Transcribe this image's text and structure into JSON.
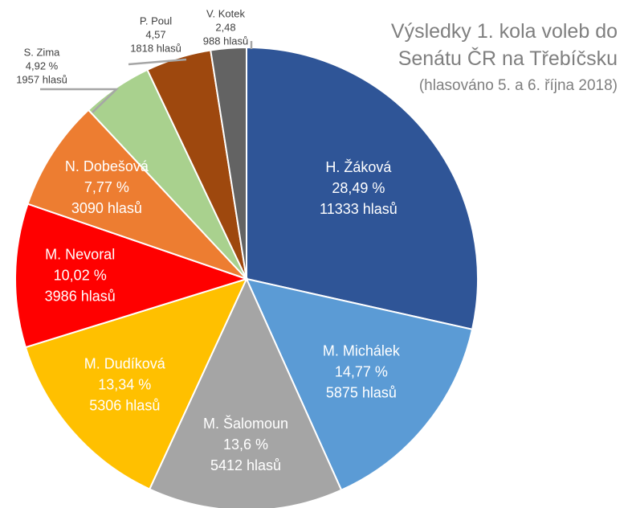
{
  "chart_data": {
    "type": "pie",
    "title_lines": [
      "Výsledky 1. kola voleb do",
      "Senátu ČR na Třebíčsku"
    ],
    "subtitle": "(hlasováno 5. a 6. října 2018)",
    "slices": [
      {
        "name": "H. Žáková",
        "percent_label": "28,49 %",
        "votes_label": "11333 hlasů",
        "votes": 11333,
        "color": "#2f5597",
        "text_color": "#ffffff"
      },
      {
        "name": "M. Michálek",
        "percent_label": "14,77 %",
        "votes_label": "5875 hlasů",
        "votes": 5875,
        "color": "#5b9bd5",
        "text_color": "#ffffff"
      },
      {
        "name": "M. Šalomoun",
        "percent_label": "13,6 %",
        "votes_label": "5412 hlasů",
        "votes": 5412,
        "color": "#a5a5a5",
        "text_color": "#ffffff"
      },
      {
        "name": "M. Dudíková",
        "percent_label": "13,34 %",
        "votes_label": "5306 hlasů",
        "votes": 5306,
        "color": "#ffc000",
        "text_color": "#ffffff"
      },
      {
        "name": "M. Nevoral",
        "percent_label": "10,02 %",
        "votes_label": "3986 hlasů",
        "votes": 3986,
        "color": "#ff0000",
        "text_color": "#ffffff"
      },
      {
        "name": "N. Dobešová",
        "percent_label": "7,77 %",
        "votes_label": "3090 hlasů",
        "votes": 3090,
        "color": "#ed7d31",
        "text_color": "#ffffff"
      },
      {
        "name": "S. Zima",
        "percent_label": "4,92 %",
        "votes_label": "1957 hlasů",
        "votes": 1957,
        "color": "#a9d18e",
        "text_color": "#404040"
      },
      {
        "name": "P. Poul",
        "percent_label": "4,57",
        "votes_label": "1818 hlasů",
        "votes": 1818,
        "color": "#9e480e",
        "text_color": "#404040"
      },
      {
        "name": "V. Kotek",
        "percent_label": "2,48",
        "votes_label": "988 hlasů",
        "votes": 988,
        "color": "#636363",
        "text_color": "#404040"
      }
    ]
  }
}
